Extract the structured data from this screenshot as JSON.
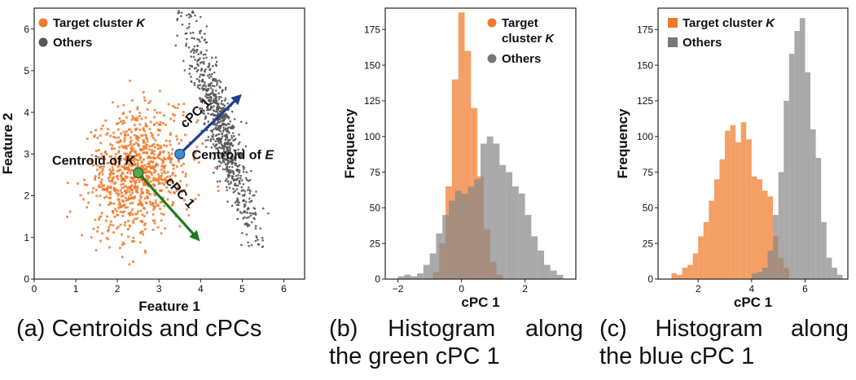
{
  "captions": [
    {
      "line1": "(a) Centroids and cPCs",
      "line2": ""
    },
    {
      "line1": "(b) Histogram along",
      "line2": "the green cPC 1"
    },
    {
      "line1": "(c) Histogram along",
      "line2": "the blue cPC 1"
    }
  ],
  "colors": {
    "orange": "#F07A2A",
    "gray": "#555555",
    "green": "#1E7A1E",
    "blue": "#1F3F8F"
  },
  "chart_data": [
    {
      "type": "scatter",
      "xlabel": "Feature 1",
      "ylabel": "Feature 2",
      "xlim": [
        0,
        6.5
      ],
      "ylim": [
        0,
        6.5
      ],
      "xticks": [
        0,
        1,
        2,
        3,
        4,
        5,
        6
      ],
      "yticks": [
        0,
        1,
        2,
        3,
        4,
        5,
        6
      ],
      "legend": {
        "position": "top-left",
        "entries": [
          "Target cluster K",
          "Others"
        ]
      },
      "series": [
        {
          "name": "Target cluster K",
          "color": "#F07A2A",
          "center": [
            2.5,
            2.55
          ],
          "std": [
            0.62,
            0.72
          ],
          "rotation": 0.35,
          "count": 900
        },
        {
          "name": "Others",
          "color": "#555555",
          "line_from": [
            3.7,
            6.3
          ],
          "line_to": [
            5.3,
            0.8
          ],
          "spread": 0.18,
          "count": 800
        }
      ],
      "annotations": [
        {
          "text": "Centroid of K",
          "point": [
            2.5,
            2.55
          ],
          "color": "#1E7A1E"
        },
        {
          "text": "Centroid of E",
          "point": [
            3.5,
            3.0
          ],
          "color": "#2A6FB0"
        },
        {
          "text": "cPC 1",
          "from": [
            2.5,
            2.55
          ],
          "to": [
            3.9,
            1.0
          ],
          "color": "#1E7A1E"
        },
        {
          "text": "cPC 1",
          "from": [
            3.5,
            3.0
          ],
          "to": [
            4.9,
            4.35
          ],
          "color": "#1F3F8F"
        }
      ]
    },
    {
      "type": "histogram",
      "xlabel": "cPC 1",
      "ylabel": "Frequency",
      "xlim": [
        -2.4,
        3.6
      ],
      "ylim": [
        0,
        190
      ],
      "xticks": [
        -2,
        0,
        2
      ],
      "yticks": [
        0,
        25,
        50,
        75,
        100,
        125,
        150,
        175
      ],
      "legend": {
        "position": "top-right",
        "entries": [
          "Target cluster K",
          "Others"
        ]
      },
      "series": [
        {
          "name": "Target cluster K",
          "color": "#F07A2A",
          "bins": [
            [
              -0.9,
              -0.7,
              5
            ],
            [
              -0.7,
              -0.5,
              25
            ],
            [
              -0.5,
              -0.3,
              65
            ],
            [
              -0.3,
              -0.1,
              140
            ],
            [
              -0.1,
              0.1,
              187
            ],
            [
              0.1,
              0.3,
              160
            ],
            [
              0.3,
              0.5,
              120
            ],
            [
              0.5,
              0.7,
              72
            ],
            [
              0.7,
              0.9,
              35
            ],
            [
              0.9,
              1.1,
              12
            ],
            [
              1.1,
              1.3,
              3
            ]
          ]
        },
        {
          "name": "Others",
          "color": "#888888",
          "bins": [
            [
              -2.0,
              -1.8,
              2
            ],
            [
              -1.8,
              -1.6,
              3
            ],
            [
              -1.6,
              -1.4,
              2
            ],
            [
              -1.4,
              -1.2,
              4
            ],
            [
              -1.2,
              -1.0,
              10
            ],
            [
              -1.0,
              -0.8,
              18
            ],
            [
              -0.8,
              -0.6,
              32
            ],
            [
              -0.6,
              -0.4,
              45
            ],
            [
              -0.4,
              -0.2,
              55
            ],
            [
              -0.2,
              0.0,
              62
            ],
            [
              0.0,
              0.2,
              60
            ],
            [
              0.2,
              0.4,
              65
            ],
            [
              0.4,
              0.6,
              70
            ],
            [
              0.6,
              0.8,
              95
            ],
            [
              0.8,
              1.0,
              100
            ],
            [
              1.0,
              1.2,
              95
            ],
            [
              1.2,
              1.4,
              80
            ],
            [
              1.4,
              1.6,
              75
            ],
            [
              1.6,
              1.8,
              65
            ],
            [
              1.8,
              2.0,
              60
            ],
            [
              2.0,
              2.2,
              45
            ],
            [
              2.2,
              2.4,
              30
            ],
            [
              2.4,
              2.6,
              20
            ],
            [
              2.6,
              2.8,
              10
            ],
            [
              2.8,
              3.0,
              6
            ],
            [
              3.0,
              3.2,
              3
            ]
          ]
        }
      ]
    },
    {
      "type": "histogram",
      "xlabel": "cPC 1",
      "ylabel": "Frequency",
      "xlim": [
        0.5,
        7.6
      ],
      "ylim": [
        0,
        190
      ],
      "xticks": [
        2,
        4,
        6
      ],
      "yticks": [
        0,
        25,
        50,
        75,
        100,
        125,
        150,
        175
      ],
      "legend": {
        "position": "top-left",
        "entries": [
          "Target cluster K",
          "Others"
        ]
      },
      "series": [
        {
          "name": "Target cluster K",
          "color": "#F07A2A",
          "bins": [
            [
              1.0,
              1.2,
              4
            ],
            [
              1.2,
              1.4,
              3
            ],
            [
              1.4,
              1.6,
              8
            ],
            [
              1.6,
              1.8,
              10
            ],
            [
              1.8,
              2.0,
              18
            ],
            [
              2.0,
              2.2,
              30
            ],
            [
              2.2,
              2.4,
              40
            ],
            [
              2.4,
              2.6,
              55
            ],
            [
              2.6,
              2.8,
              70
            ],
            [
              2.8,
              3.0,
              84
            ],
            [
              3.0,
              3.2,
              104
            ],
            [
              3.2,
              3.4,
              108
            ],
            [
              3.4,
              3.6,
              96
            ],
            [
              3.6,
              3.8,
              110
            ],
            [
              3.8,
              4.0,
              98
            ],
            [
              4.0,
              4.2,
              72
            ],
            [
              4.2,
              4.4,
              70
            ],
            [
              4.4,
              4.6,
              62
            ],
            [
              4.6,
              4.8,
              58
            ],
            [
              4.8,
              5.0,
              30
            ],
            [
              5.0,
              5.2,
              15
            ],
            [
              5.2,
              5.4,
              8
            ]
          ]
        },
        {
          "name": "Others",
          "color": "#888888",
          "bins": [
            [
              4.0,
              4.2,
              4
            ],
            [
              4.2,
              4.4,
              5
            ],
            [
              4.4,
              4.6,
              8
            ],
            [
              4.6,
              4.8,
              20
            ],
            [
              4.8,
              5.0,
              45
            ],
            [
              5.0,
              5.2,
              75
            ],
            [
              5.2,
              5.4,
              125
            ],
            [
              5.4,
              5.6,
              158
            ],
            [
              5.6,
              5.8,
              174
            ],
            [
              5.8,
              6.0,
              183
            ],
            [
              6.0,
              6.2,
              145
            ],
            [
              6.2,
              6.4,
              105
            ],
            [
              6.4,
              6.6,
              85
            ],
            [
              6.6,
              6.8,
              40
            ],
            [
              6.8,
              7.0,
              15
            ],
            [
              7.0,
              7.2,
              8
            ],
            [
              7.2,
              7.4,
              3
            ]
          ]
        }
      ]
    }
  ]
}
